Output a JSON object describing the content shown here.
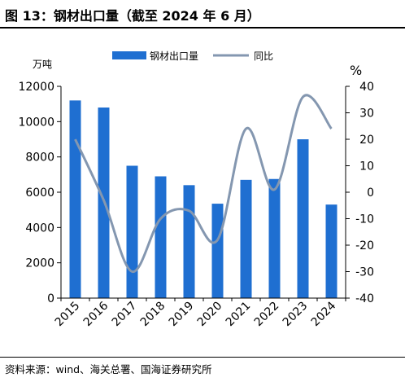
{
  "title": "图 13：钢材出口量（截至 2024 年 6 月）",
  "source": "资料来源：wind、海关总署、国海证券研究所",
  "chart_data": {
    "type": "bar",
    "title": "",
    "categories": [
      "2015",
      "2016",
      "2017",
      "2018",
      "2019",
      "2020",
      "2021",
      "2022",
      "2023",
      "2024"
    ],
    "series": [
      {
        "name": "钢材出口量",
        "type": "bar",
        "axis": "left",
        "color": "#1f6fd1",
        "values": [
          11200,
          10800,
          7500,
          6900,
          6400,
          5350,
          6700,
          6750,
          9000,
          5300
        ]
      },
      {
        "name": "同比",
        "type": "line",
        "axis": "right",
        "color": "#8497b0",
        "values": [
          20,
          -3,
          -30,
          -10,
          -7,
          -18,
          24,
          1,
          36,
          24
        ]
      }
    ],
    "left_axis": {
      "unit": "万吨",
      "ylim": [
        0,
        12000
      ],
      "ticks": [
        "0",
        "2000",
        "4000",
        "6000",
        "8000",
        "10000",
        "12000"
      ]
    },
    "right_axis": {
      "unit": "%",
      "ylim": [
        -40,
        40
      ],
      "ticks": [
        "-40",
        "-30",
        "-20",
        "-10",
        "0",
        "10",
        "20",
        "30",
        "40"
      ]
    },
    "legend_position": "top",
    "grid": false
  }
}
